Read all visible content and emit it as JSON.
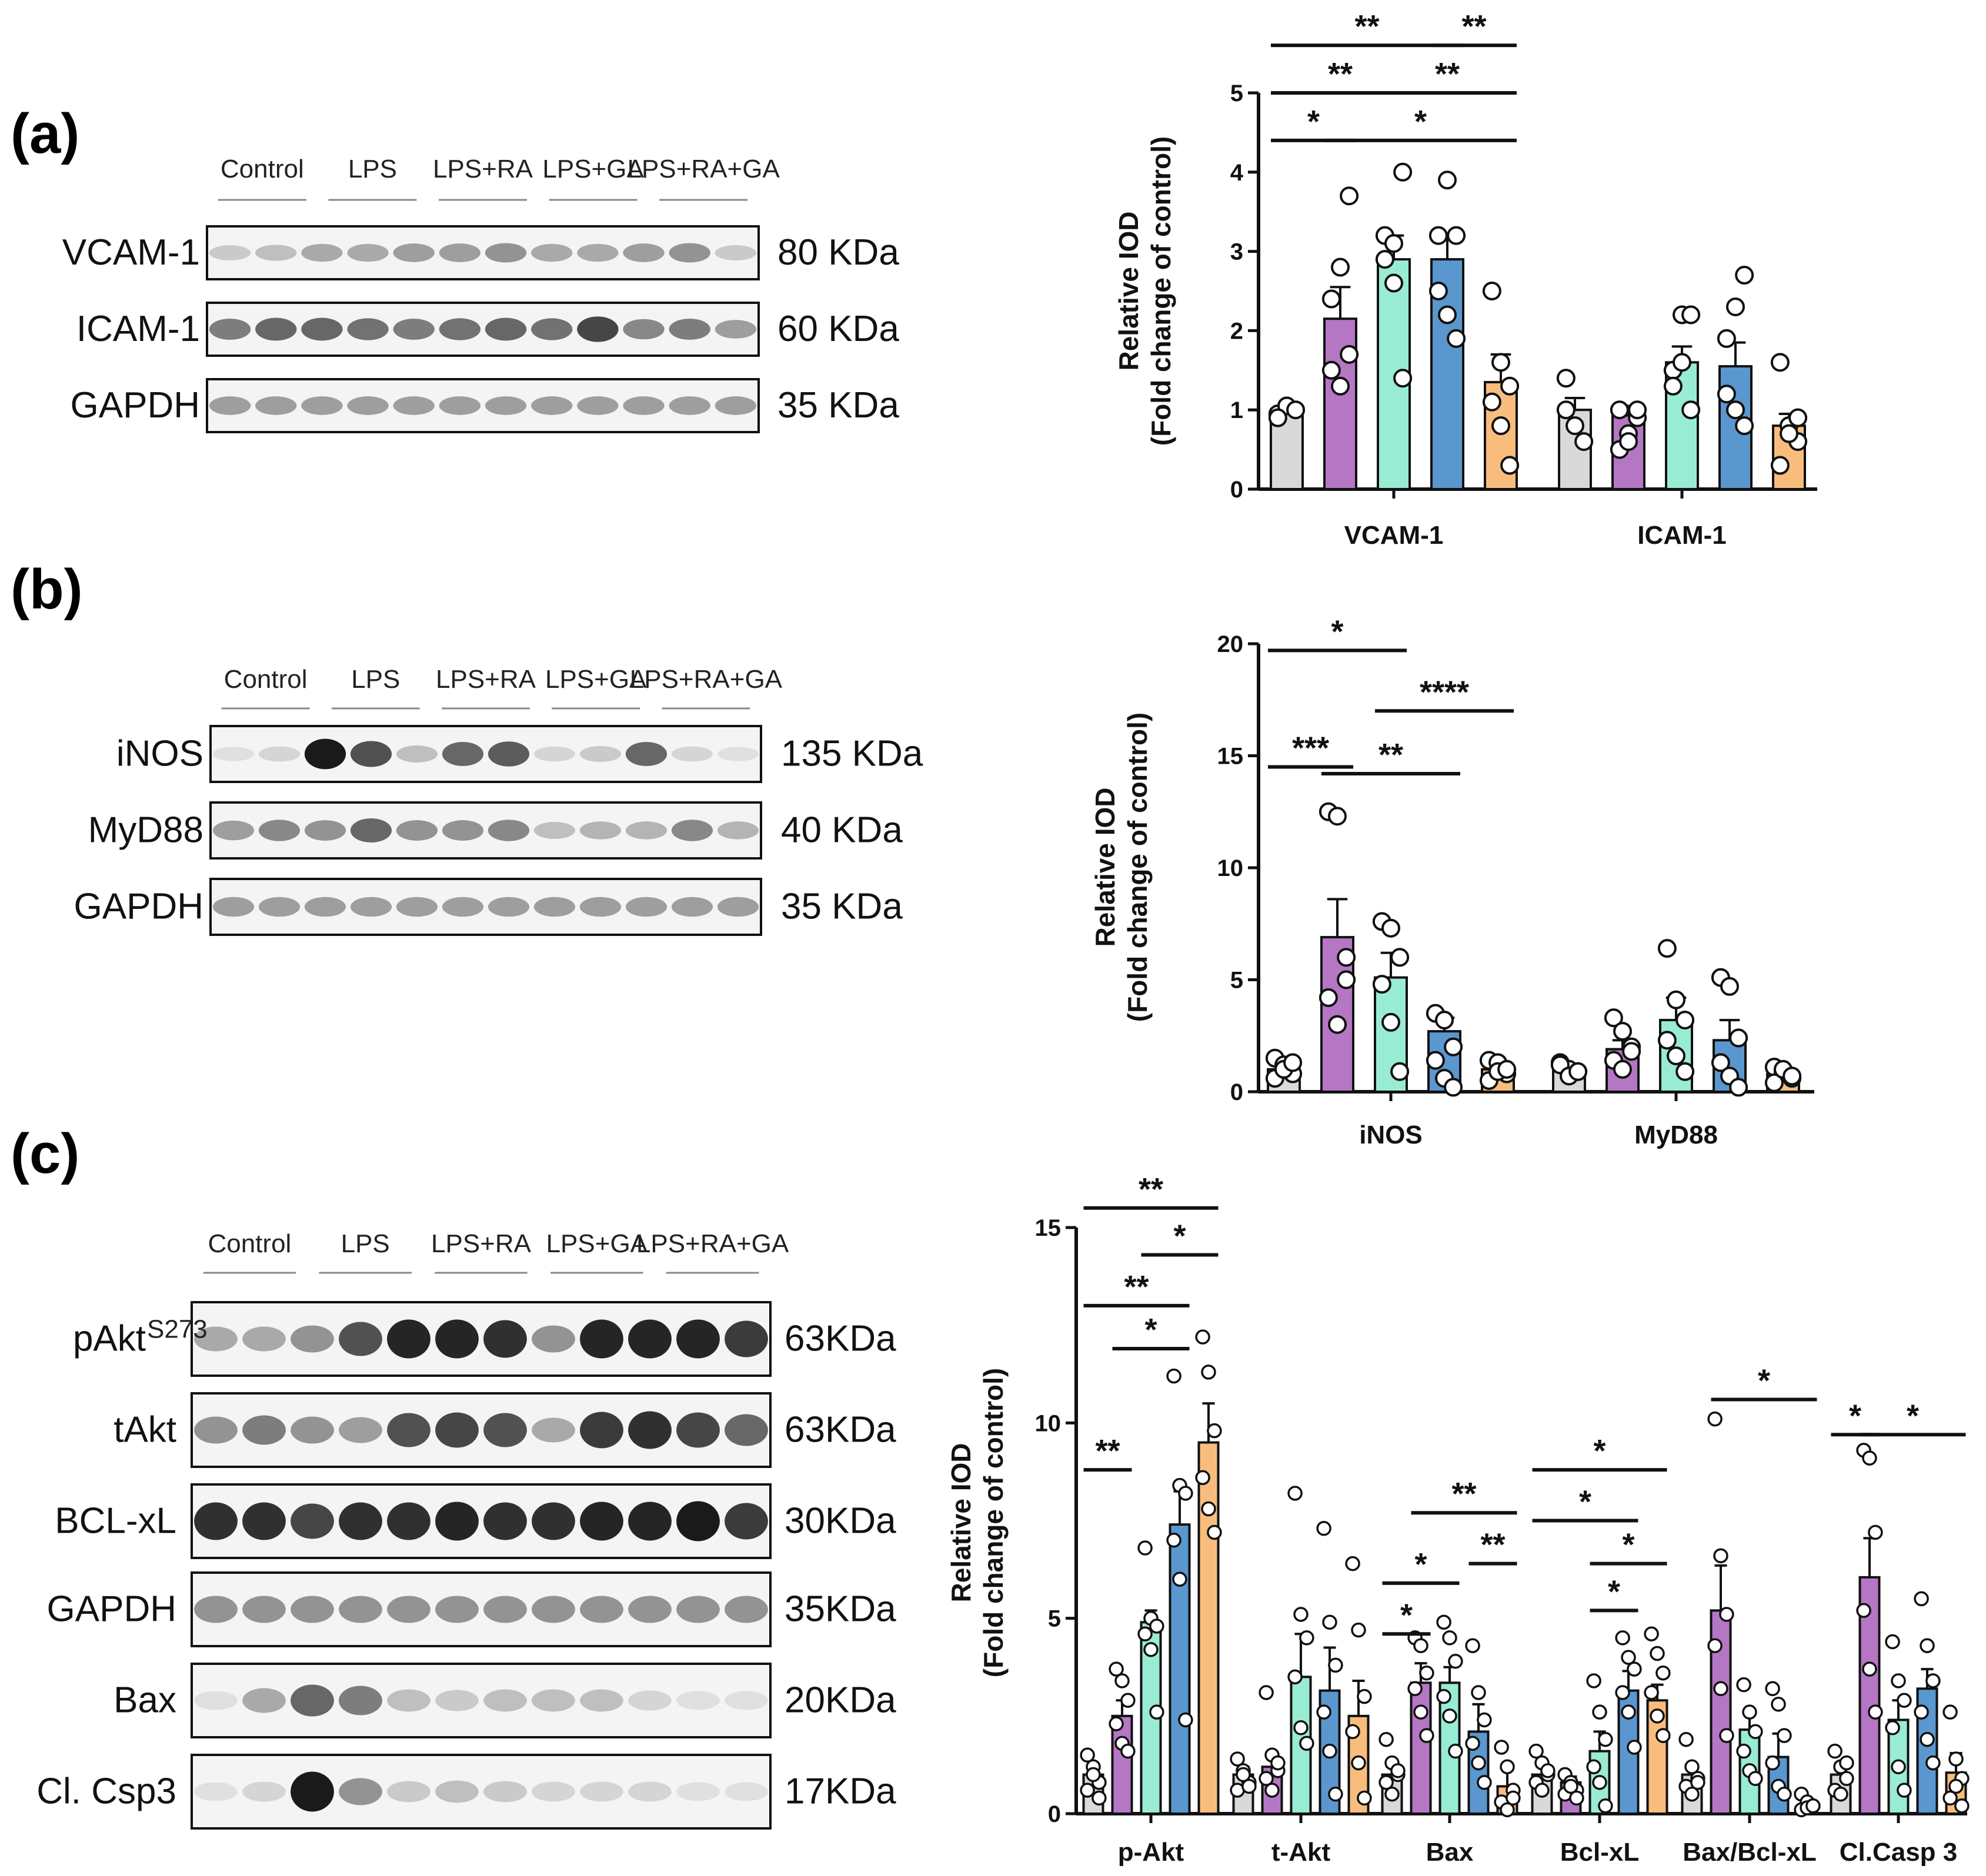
{
  "panels": {
    "a": {
      "label": "(a)",
      "groups": [
        "Control",
        "LPS",
        "LPS+RA",
        "LPS+GA",
        "LPS+RA+GA"
      ],
      "blots": [
        {
          "name": "VCAM-1",
          "kda": "80 KDa"
        },
        {
          "name": "ICAM-1",
          "kda": "60 KDa"
        },
        {
          "name": "GAPDH",
          "kda": "35 KDa"
        }
      ]
    },
    "b": {
      "label": "(b)",
      "groups": [
        "Control",
        "LPS",
        "LPS+RA",
        "LPS+GA",
        "LPS+RA+GA"
      ],
      "blots": [
        {
          "name": "iNOS",
          "kda": "135 KDa"
        },
        {
          "name": "MyD88",
          "kda": "40 KDa"
        },
        {
          "name": "GAPDH",
          "kda": "35 KDa"
        }
      ]
    },
    "c": {
      "label": "(c)",
      "groups": [
        "Control",
        "LPS",
        "LPS+RA",
        "LPS+GA",
        "LPS+RA+GA"
      ],
      "blots": [
        {
          "name": "pAkt",
          "sup": "S273",
          "kda": "63KDa"
        },
        {
          "name": "tAkt",
          "kda": "63KDa"
        },
        {
          "name": "BCL-xL",
          "kda": "30KDa"
        },
        {
          "name": "GAPDH",
          "kda": "35KDa"
        },
        {
          "name": "Bax",
          "kda": "20KDa"
        },
        {
          "name": "Cl. Csp3",
          "kda": "17KDa"
        }
      ]
    }
  },
  "colors": {
    "Control": "#d9d9d9",
    "LPS": "#b577c4",
    "LPS+RA": "#99ecd4",
    "LPS+GA": "#5b97cf",
    "LPS+RA+GA": "#f8bd7d"
  },
  "chart_data": [
    {
      "type": "bar",
      "panel": "a",
      "ylabel": "Relative IOD",
      "ylabel2": "(Fold change of control)",
      "ylim": [
        0,
        5
      ],
      "yticks": [
        "0",
        "1",
        "2",
        "3",
        "4",
        "5"
      ],
      "categories": [
        "VCAM-1",
        "ICAM-1"
      ],
      "series": [
        {
          "name": "Control",
          "values": [
            1.0,
            1.0
          ],
          "errors": [
            0.05,
            0.15
          ]
        },
        {
          "name": "LPS",
          "values": [
            2.15,
            0.93
          ],
          "errors": [
            0.4,
            0.12
          ]
        },
        {
          "name": "LPS+RA",
          "values": [
            2.9,
            1.6
          ],
          "errors": [
            0.3,
            0.2
          ]
        },
        {
          "name": "LPS+GA",
          "values": [
            2.9,
            1.55
          ],
          "errors": [
            0.28,
            0.3
          ]
        },
        {
          "name": "LPS+RA+GA",
          "values": [
            1.35,
            0.8
          ],
          "errors": [
            0.35,
            0.15
          ]
        }
      ],
      "points": [
        [
          [
            0.95,
            1.05,
            1.0,
            0.9
          ],
          [
            2.4,
            2.8,
            3.7,
            1.5,
            1.3,
            1.7
          ]
        ],
        [
          [
            3.2,
            3.1,
            4.0,
            2.9,
            2.6,
            1.4
          ],
          [
            3.2,
            3.9,
            3.2,
            2.5,
            2.2,
            1.9
          ]
        ],
        [
          [
            2.5,
            1.6,
            1.3,
            1.1,
            0.8,
            0.3
          ],
          [
            1.4,
            0.8,
            0.6,
            1.0
          ]
        ],
        [
          [
            1.0,
            0.7,
            0.9,
            0.5,
            0.6,
            1.0
          ],
          [
            1.5,
            2.2,
            2.2,
            1.3,
            1.6,
            1.0
          ]
        ],
        [
          [
            1.9,
            2.3,
            2.7,
            1.2,
            1.0,
            0.8
          ],
          [
            1.6,
            0.8,
            0.6,
            0.3,
            0.7,
            0.9
          ]
        ]
      ],
      "sig": [
        {
          "from": 0,
          "to": 3,
          "label": "**",
          "y": 5.6
        },
        {
          "from": 3,
          "to": 4,
          "label": "**",
          "y": 5.6
        },
        {
          "from": 0,
          "to": 2,
          "label": "**",
          "y": 5.0
        },
        {
          "from": 2,
          "to": 4,
          "label": "**",
          "y": 5.0
        },
        {
          "from": 0,
          "to": 1,
          "label": "*",
          "y": 4.4
        },
        {
          "from": 1,
          "to": 4,
          "label": "*",
          "y": 4.4
        }
      ]
    },
    {
      "type": "bar",
      "panel": "b",
      "ylabel": "Relative IOD",
      "ylabel2": "(Fold change of control)",
      "ylim": [
        0,
        20
      ],
      "yticks": [
        "0",
        "5",
        "10",
        "15",
        "20"
      ],
      "categories": [
        "iNOS",
        "MyD88"
      ],
      "series": [
        {
          "name": "Control",
          "values": [
            1.0,
            1.0
          ],
          "errors": [
            0.2,
            0.15
          ]
        },
        {
          "name": "LPS",
          "values": [
            6.9,
            1.9
          ],
          "errors": [
            1.7,
            0.4
          ]
        },
        {
          "name": "LPS+RA",
          "values": [
            5.1,
            3.2
          ],
          "errors": [
            1.1,
            1.0
          ]
        },
        {
          "name": "LPS+GA",
          "values": [
            2.7,
            2.3
          ],
          "errors": [
            0.6,
            0.9
          ]
        },
        {
          "name": "LPS+RA+GA",
          "values": [
            1.0,
            0.8
          ],
          "errors": [
            0.2,
            0.2
          ]
        }
      ],
      "points": [
        [
          [
            1.5,
            1.2,
            0.8,
            0.6,
            1.0,
            1.3
          ],
          [
            12.5,
            12.3,
            6.0,
            4.2,
            3.0,
            5.0
          ]
        ],
        [
          [
            7.6,
            7.3,
            6.0,
            4.8,
            3.1,
            0.9
          ],
          [
            3.5,
            3.2,
            2.0,
            1.4,
            0.6,
            0.2
          ]
        ],
        [
          [
            1.4,
            1.3,
            0.8,
            0.5,
            0.9,
            1.0
          ],
          [
            1.3,
            1.0,
            0.9,
            1.2,
            0.7,
            0.9
          ]
        ],
        [
          [
            3.3,
            2.7,
            2.0,
            1.4,
            1.0,
            1.8
          ],
          [
            6.4,
            4.1,
            3.2,
            2.3,
            1.6,
            0.9
          ]
        ],
        [
          [
            5.1,
            4.7,
            2.4,
            1.3,
            0.7,
            0.2
          ],
          [
            1.1,
            0.9,
            0.6,
            0.4,
            1.0,
            0.7
          ]
        ]
      ],
      "sig": [
        {
          "from": 0,
          "to": 2,
          "label": "*",
          "y": 19.7
        },
        {
          "from": 2,
          "to": 4,
          "label": "****",
          "y": 17.0
        },
        {
          "from": 0,
          "to": 1,
          "label": "***",
          "y": 14.5
        },
        {
          "from": 1,
          "to": 3,
          "label": "**",
          "y": 14.2
        }
      ]
    },
    {
      "type": "bar",
      "panel": "c",
      "ylabel": "Relative IOD",
      "ylabel2": "(Fold change of control)",
      "ylim": [
        0,
        15
      ],
      "yticks": [
        "0",
        "5",
        "10",
        "15"
      ],
      "categories": [
        "p-Akt",
        "t-Akt",
        "Bax",
        "Bcl-xL",
        "Bax/Bcl-xL",
        "Cl.Casp 3"
      ],
      "series": [
        {
          "name": "Control",
          "values": [
            1.0,
            1.0,
            1.0,
            1.0,
            1.0,
            1.0
          ],
          "errors": [
            0.2,
            0.2,
            0.2,
            0.2,
            0.25,
            0.3
          ]
        },
        {
          "name": "LPS",
          "values": [
            2.5,
            1.2,
            3.35,
            0.8,
            5.2,
            6.05
          ],
          "errors": [
            0.4,
            0.3,
            0.5,
            0.15,
            1.15,
            1.0
          ]
        },
        {
          "name": "LPS+RA",
          "values": [
            4.9,
            3.5,
            3.35,
            1.6,
            2.15,
            2.4
          ],
          "errors": [
            0.3,
            1.1,
            0.4,
            0.5,
            0.5,
            0.5
          ]
        },
        {
          "name": "LPS+GA",
          "values": [
            7.4,
            3.15,
            2.1,
            3.15,
            1.45,
            3.2
          ],
          "errors": [
            0.85,
            1.1,
            0.7,
            0.5,
            0.6,
            0.5
          ]
        },
        {
          "name": "LPS+RA+GA",
          "values": [
            9.5,
            2.5,
            0.7,
            2.9,
            0.15,
            1.05
          ],
          "errors": [
            1.0,
            0.9,
            0.5,
            0.4,
            0.1,
            0.5
          ]
        }
      ],
      "points": [
        [
          [
            1.5,
            1.2,
            0.8,
            0.6,
            1.0,
            0.4
          ],
          [
            3.7,
            3.4,
            2.9,
            2.3,
            1.8,
            1.6
          ],
          [
            6.8,
            5.0,
            4.8,
            4.6,
            4.2,
            2.6
          ],
          [
            11.2,
            8.4,
            8.2,
            7.0,
            6.0,
            2.4
          ],
          [
            12.2,
            11.3,
            9.8,
            8.6,
            7.8,
            7.2
          ]
        ],
        [
          [
            1.4,
            1.1,
            0.8,
            0.6,
            1.0,
            0.7
          ],
          [
            3.1,
            1.5,
            1.1,
            0.9,
            0.6,
            1.3
          ],
          [
            8.2,
            5.1,
            4.5,
            3.5,
            2.2,
            1.8
          ],
          [
            7.3,
            4.9,
            3.8,
            2.6,
            1.6,
            0.5
          ],
          [
            6.4,
            4.7,
            3.0,
            2.1,
            1.3,
            0.4
          ]
        ],
        [
          [
            1.9,
            1.3,
            1.0,
            0.8,
            0.5,
            1.1
          ],
          [
            4.5,
            4.3,
            3.6,
            3.2,
            2.6,
            2.0
          ],
          [
            4.9,
            4.5,
            3.9,
            3.0,
            2.5,
            1.6
          ],
          [
            4.3,
            3.1,
            2.4,
            1.8,
            1.3,
            0.8
          ],
          [
            1.7,
            1.2,
            0.6,
            0.3,
            0.1,
            0.4
          ]
        ],
        [
          [
            1.6,
            1.3,
            1.0,
            0.8,
            0.6,
            1.1
          ],
          [
            1.0,
            0.8,
            0.6,
            0.5,
            0.7,
            0.4
          ],
          [
            3.4,
            2.6,
            1.9,
            1.2,
            0.8,
            0.2
          ],
          [
            4.5,
            4.0,
            3.7,
            3.1,
            2.6,
            1.7
          ],
          [
            4.6,
            4.1,
            3.6,
            3.1,
            2.5,
            2.0
          ]
        ],
        [
          [
            1.9,
            1.2,
            0.9,
            0.7,
            0.5,
            0.8
          ],
          [
            10.1,
            6.6,
            5.1,
            4.3,
            3.2,
            2.0
          ],
          [
            3.3,
            2.6,
            2.1,
            1.6,
            1.1,
            0.9
          ],
          [
            3.2,
            2.8,
            2.0,
            1.3,
            0.7,
            0.5
          ],
          [
            0.5,
            0.3,
            0.2,
            0.1,
            0.15,
            0.2
          ]
        ],
        [
          [
            1.6,
            1.2,
            0.9,
            0.6,
            0.5,
            1.3
          ],
          [
            9.3,
            9.1,
            7.2,
            5.2,
            3.7,
            2.6
          ],
          [
            4.4,
            3.4,
            2.9,
            2.2,
            1.2,
            0.6
          ],
          [
            5.5,
            4.3,
            3.4,
            2.6,
            1.9,
            1.3
          ],
          [
            2.6,
            1.4,
            0.9,
            0.4,
            0.7,
            0.2
          ]
        ]
      ],
      "sig": [
        {
          "cat": 0,
          "from": 0,
          "to": 4,
          "label": "**",
          "y": 15.5
        },
        {
          "cat": 0,
          "from": 2,
          "to": 4,
          "label": "*",
          "y": 14.3
        },
        {
          "cat": 0,
          "from": 0,
          "to": 3,
          "label": "**",
          "y": 13.0
        },
        {
          "cat": 0,
          "from": 1,
          "to": 3,
          "label": "*",
          "y": 11.9
        },
        {
          "cat": 0,
          "from": 0,
          "to": 1,
          "label": "**",
          "y": 8.8
        },
        {
          "cat": 2,
          "from": 1,
          "to": 4,
          "label": "**",
          "y": 7.7
        },
        {
          "cat": 2,
          "from": 3,
          "to": 4,
          "label": "**",
          "y": 6.4
        },
        {
          "cat": 2,
          "from": 0,
          "to": 2,
          "label": "*",
          "y": 5.9
        },
        {
          "cat": 2,
          "from": 0,
          "to": 1,
          "label": "*",
          "y": 4.6
        },
        {
          "cat": 3,
          "from": 0,
          "to": 4,
          "label": "*",
          "y": 8.8
        },
        {
          "cat": 3,
          "from": 0,
          "to": 3,
          "label": "*",
          "y": 7.5
        },
        {
          "cat": 3,
          "from": 2,
          "to": 4,
          "label": "*",
          "y": 6.4
        },
        {
          "cat": 3,
          "from": 2,
          "to": 3,
          "label": "*",
          "y": 5.2
        },
        {
          "cat": 4,
          "from": 1,
          "to": 4,
          "label": "*",
          "y": 10.6
        },
        {
          "cat": 5,
          "from": 0,
          "to": 1,
          "label": "*",
          "y": 9.7
        },
        {
          "cat": 5,
          "from": 1,
          "to": 4,
          "label": "*",
          "y": 9.7
        }
      ]
    }
  ]
}
